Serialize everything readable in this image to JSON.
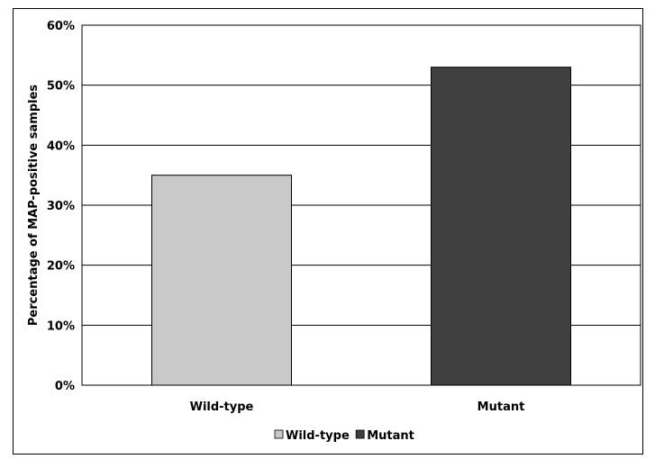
{
  "chart_data": {
    "type": "bar",
    "categories": [
      "Wild-type",
      "Mutant"
    ],
    "values": [
      35,
      53
    ],
    "series": [
      {
        "name": "Wild-type",
        "values": [
          35,
          null
        ],
        "color": "#c8c8c8"
      },
      {
        "name": "Mutant",
        "values": [
          null,
          53
        ],
        "color": "#404040"
      }
    ],
    "title": "",
    "xlabel": "",
    "ylabel": "Percentage of MAP-positive samples",
    "ylim": [
      0,
      60
    ],
    "yticks": [
      0,
      10,
      20,
      30,
      40,
      50,
      60
    ],
    "ytick_labels": [
      "0%",
      "10%",
      "20%",
      "30%",
      "40%",
      "50%",
      "60%"
    ],
    "grid": true,
    "legend": {
      "position": "bottom",
      "entries": [
        "Wild-type",
        "Mutant"
      ]
    }
  }
}
